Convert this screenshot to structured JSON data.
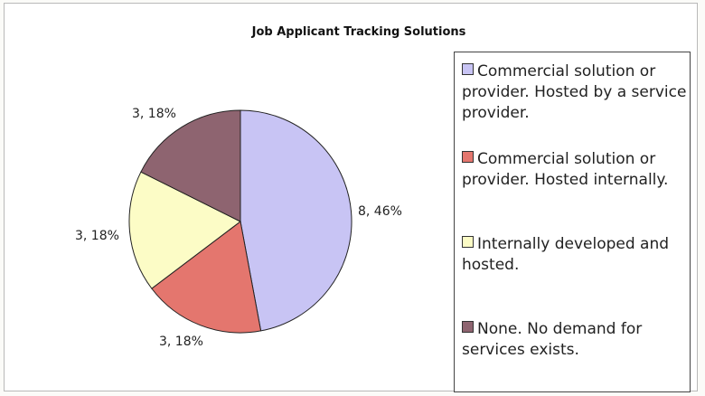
{
  "chart_data": {
    "type": "pie",
    "title": "Job Applicant Tracking Solutions",
    "slices": [
      {
        "label": "Commercial solution or provider. Hosted by a service provider.",
        "value": 8,
        "percent": 46,
        "data_label": "8, 46%",
        "color": "#c8c4f4"
      },
      {
        "label": "Commercial solution or provider. Hosted internally.",
        "value": 3,
        "percent": 18,
        "data_label": "3, 18%",
        "color": "#e4766e"
      },
      {
        "label": "Internally developed and hosted.",
        "value": 3,
        "percent": 18,
        "data_label": "3, 18%",
        "color": "#fcfcc6"
      },
      {
        "label": "None. No demand for services exists.",
        "value": 3,
        "percent": 18,
        "data_label": "3, 18%",
        "color": "#8e6470"
      }
    ],
    "legend_position": "right"
  }
}
